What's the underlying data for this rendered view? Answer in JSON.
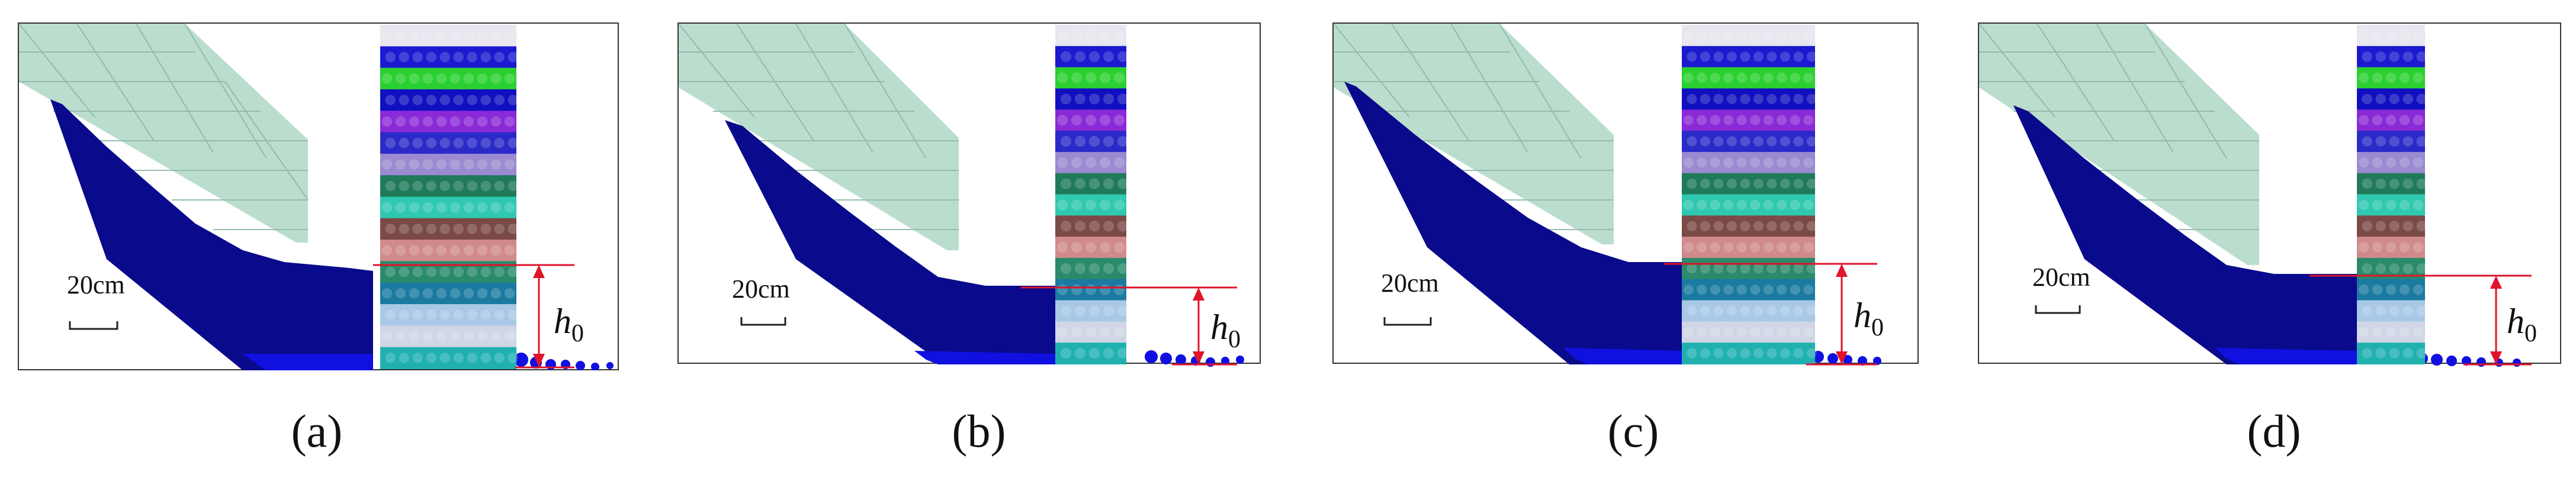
{
  "colors": {
    "background": "#ffffff",
    "frame": "#333333",
    "hopper": "#b3d9c9",
    "particle_deep": "#0a0a8c",
    "particle_bright": "#1010e0",
    "level_line": "#e0142a",
    "arrow": "#e0142a",
    "column_layers": [
      "#e8e6ee",
      "#1a1ad0",
      "#2ad030",
      "#1010c0",
      "#8a2ad6",
      "#2a2ac8",
      "#9a8ad0",
      "#207a5a",
      "#30c8b0",
      "#7a4a46",
      "#d08a8a",
      "#2a8a6a",
      "#1a7aa0",
      "#a8c8e6",
      "#d0d6e6",
      "#20b0b0"
    ]
  },
  "panels": [
    {
      "id": "a",
      "label": "(a)",
      "scale_text": "20cm",
      "height_symbol": "h",
      "height_subscript": "0"
    },
    {
      "id": "b",
      "label": "(b)",
      "scale_text": "20cm",
      "height_symbol": "h",
      "height_subscript": "0"
    },
    {
      "id": "c",
      "label": "(c)",
      "scale_text": "20cm",
      "height_symbol": "h",
      "height_subscript": "0"
    },
    {
      "id": "d",
      "label": "(d)",
      "scale_text": "20cm",
      "height_symbol": "h",
      "height_subscript": "0"
    }
  ]
}
